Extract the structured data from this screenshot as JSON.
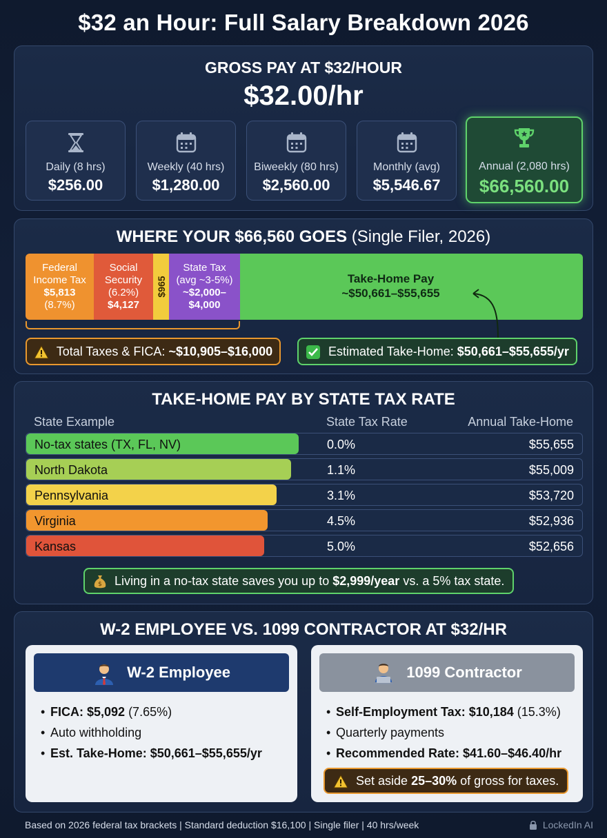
{
  "title": "$32 an Hour: Full Salary Breakdown 2026",
  "gross": {
    "title": "GROSS PAY AT $32/HOUR",
    "rate": "$32.00/hr",
    "cards": [
      {
        "label": "Daily (8 hrs)",
        "value": "$256.00",
        "icon": "hourglass-icon"
      },
      {
        "label": "Weekly (40 hrs)",
        "value": "$1,280.00",
        "icon": "calendar-icon"
      },
      {
        "label": "Biweekly (80 hrs)",
        "value": "$2,560.00",
        "icon": "calendar-icon"
      },
      {
        "label": "Monthly (avg)",
        "value": "$5,546.67",
        "icon": "calendar-icon"
      },
      {
        "label": "Annual (2,080 hrs)",
        "value": "$66,560.00",
        "icon": "trophy-icon"
      }
    ]
  },
  "goes": {
    "title": "WHERE YOUR $66,560 GOES",
    "subtitle": "(Single Filer, 2026)",
    "segments": {
      "federal": {
        "l1": "Federal",
        "l2": "Income Tax",
        "l3": "$5,813",
        "l4": "(8.7%)"
      },
      "social": {
        "l1": "Social",
        "l2": "Security",
        "l3": "(6.2%)",
        "l4": "$4,127"
      },
      "medicare": {
        "label": "$965"
      },
      "state": {
        "l1": "State Tax",
        "l2": "(avg ~3-5%)",
        "l3": "~$2,000–",
        "l4": "$4,000"
      },
      "takehome": {
        "l1": "Take-Home Pay",
        "l2": "~$50,661–$55,655"
      }
    },
    "total_taxes": {
      "label": "Total Taxes & FICA:",
      "value": "~$10,905–$16,000"
    },
    "est_takehome": {
      "label": "Estimated Take-Home:",
      "value": "$50,661–$55,655/yr"
    },
    "colors": {
      "federal": "#ef922f",
      "social": "#e05a3a",
      "medicare": "#f2cc3d",
      "state": "#8a52c9",
      "takehome": "#5bc858"
    }
  },
  "states": {
    "title": "TAKE-HOME PAY BY STATE TAX RATE",
    "headers": {
      "state": "State Example",
      "rate": "State Tax Rate",
      "amount": "Annual Take-Home"
    },
    "rows": [
      {
        "name": "No-tax states (TX, FL, NV)",
        "rate": "0.0%",
        "amount": "$55,655",
        "value": 55655,
        "color": "#5bc858"
      },
      {
        "name": "North Dakota",
        "rate": "1.1%",
        "amount": "$55,009",
        "value": 55009,
        "color": "#a6cf55"
      },
      {
        "name": "Pennsylvania",
        "rate": "3.1%",
        "amount": "$53,720",
        "value": 53720,
        "color": "#f3d24a"
      },
      {
        "name": "Virginia",
        "rate": "4.5%",
        "amount": "$52,936",
        "value": 52936,
        "color": "#f2962e"
      },
      {
        "name": "Kansas",
        "rate": "5.0%",
        "amount": "$52,656",
        "value": 52656,
        "color": "#e0543a"
      }
    ],
    "note_pre": "Living in a no-tax state saves you up to",
    "note_bold": "$2,999/year",
    "note_post": "vs. a 5% tax state."
  },
  "compare": {
    "title": "W-2 EMPLOYEE VS. 1099 CONTRACTOR AT $32/HR",
    "w2": {
      "header": "W-2 Employee",
      "items": [
        {
          "bold": "FICA: $5,092",
          "rest": "(7.65%)"
        },
        {
          "bold": "",
          "rest": "Auto withholding"
        },
        {
          "bold": "Est. Take-Home: $50,661–$55,655/yr",
          "rest": ""
        }
      ]
    },
    "c1099": {
      "header": "1099 Contractor",
      "items": [
        {
          "bold": "Self-Employment Tax: $10,184",
          "rest": "(15.3%)"
        },
        {
          "bold": "",
          "rest": "Quarterly payments"
        },
        {
          "bold": "Recommended Rate: $41.60–$46.40/hr",
          "rest": ""
        }
      ],
      "aside_pre": "Set aside",
      "aside_bold": "25–30%",
      "aside_post": "of gross for taxes."
    }
  },
  "footer": "Based on 2026 federal tax brackets | Standard deduction $16,100 | Single filer | 40 hrs/week",
  "brand": "LockedIn AI"
}
